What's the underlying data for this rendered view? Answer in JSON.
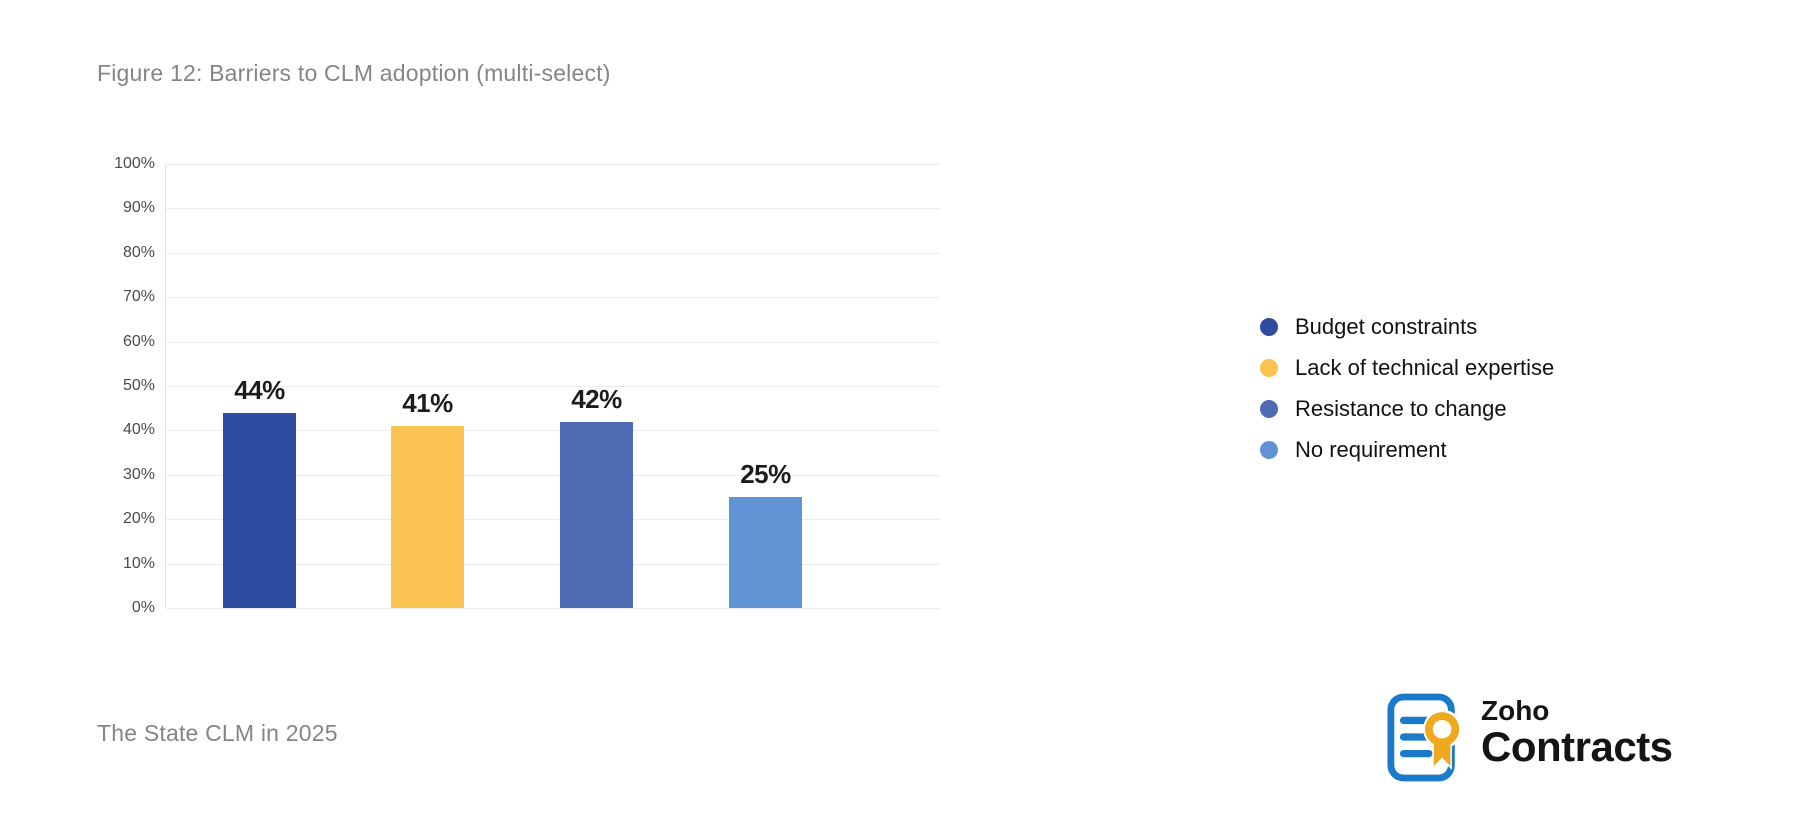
{
  "figure": {
    "title": "Figure 12: Barriers to CLM adoption (multi-select)",
    "source": "The State CLM in 2025"
  },
  "chart_data": {
    "type": "bar",
    "categories": [
      "Budget constraints",
      "Lack of technical expertise",
      "Resistance to change",
      "No requirement"
    ],
    "values": [
      44,
      41,
      42,
      25
    ],
    "value_labels": [
      "44%",
      "41%",
      "42%",
      "25%"
    ],
    "bar_colors": [
      "#2e4da0",
      "#fbc351",
      "#4e6bb4",
      "#6093d3"
    ],
    "title": "Figure 12: Barriers to CLM adoption (multi-select)",
    "xlabel": "",
    "ylabel": "",
    "ylim": [
      0,
      100
    ],
    "y_ticks": [
      "100%",
      "90%",
      "80%",
      "70%",
      "60%",
      "50%",
      "40%",
      "30%",
      "20%",
      "10%",
      "0%"
    ],
    "grid": true,
    "legend_position": "right"
  },
  "legend": {
    "items": [
      {
        "label": "Budget constraints",
        "color": "#2e4da0"
      },
      {
        "label": "Lack of technical expertise",
        "color": "#fbc351"
      },
      {
        "label": "Resistance to change",
        "color": "#4e6bb4"
      },
      {
        "label": "No requirement",
        "color": "#6093d3"
      }
    ]
  },
  "branding": {
    "company": "Zoho",
    "product": "Contracts",
    "logo_icon": "contract-document-with-seal-icon",
    "brand_blue": "#1b7ac9",
    "brand_gold": "#f0a81f"
  }
}
